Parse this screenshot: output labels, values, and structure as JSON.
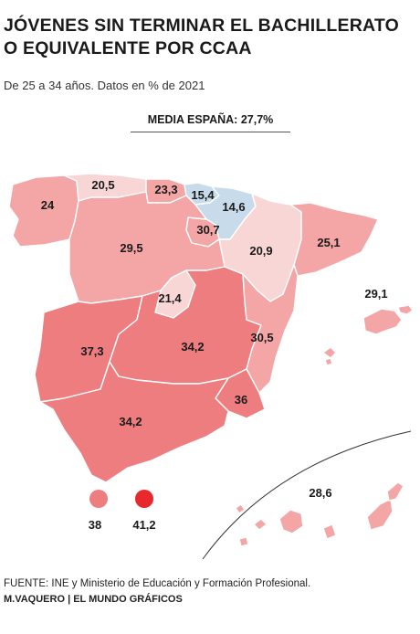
{
  "title": "JÓVENES SIN TERMINAR EL BACHILLERATO O EQUIVALENTE POR CCAA",
  "subtitle": "De 25 a 34 años. Datos en % de 2021",
  "average_label": "MEDIA ESPAÑA: 27,7%",
  "source": "FUENTE: INE y Ministerio de Educación y Formación Profesional.",
  "credit": "M.VAQUERO | EL MUNDO GRÁFICOS",
  "colors": {
    "lowest": "#c7dbeb",
    "low": "#f9d6d6",
    "mid": "#f4a6a6",
    "high": "#ee7d80",
    "highest": "#e8282d",
    "border": "#ffffff"
  },
  "regions": [
    {
      "name": "Galicia",
      "value": "24",
      "tone": "mid"
    },
    {
      "name": "Asturias",
      "value": "20,5",
      "tone": "low"
    },
    {
      "name": "Cantabria",
      "value": "23,3",
      "tone": "mid"
    },
    {
      "name": "País Vasco",
      "value": "15,4",
      "tone": "lowest"
    },
    {
      "name": "Navarra",
      "value": "14,6",
      "tone": "lowest"
    },
    {
      "name": "La Rioja",
      "value": "30,7",
      "tone": "mid"
    },
    {
      "name": "Aragón",
      "value": "20,9",
      "tone": "low"
    },
    {
      "name": "Cataluña",
      "value": "25,1",
      "tone": "mid"
    },
    {
      "name": "Castilla y León",
      "value": "29,5",
      "tone": "mid"
    },
    {
      "name": "Madrid",
      "value": "21,4",
      "tone": "low"
    },
    {
      "name": "Extremadura",
      "value": "37,3",
      "tone": "high"
    },
    {
      "name": "Castilla-La Mancha",
      "value": "34,2",
      "tone": "high"
    },
    {
      "name": "C. Valenciana",
      "value": "30,5",
      "tone": "mid"
    },
    {
      "name": "Baleares",
      "value": "29,1",
      "tone": "mid"
    },
    {
      "name": "Murcia",
      "value": "36",
      "tone": "high"
    },
    {
      "name": "Andalucía",
      "value": "34,2",
      "tone": "high"
    },
    {
      "name": "Canarias",
      "value": "28,6",
      "tone": "mid"
    },
    {
      "name": "Ceuta",
      "value": "38",
      "tone": "high"
    },
    {
      "name": "Melilla",
      "value": "41,2",
      "tone": "highest"
    }
  ]
}
